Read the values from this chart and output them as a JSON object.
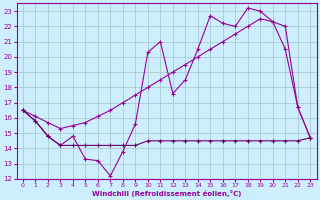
{
  "xlabel": "Windchill (Refroidissement éolien,°C)",
  "bg_color": "#cceeff",
  "grid_color": "#aacccc",
  "line_color": "#990099",
  "line_color2": "#660066",
  "xlim": [
    -0.5,
    23.5
  ],
  "ylim": [
    12,
    23.5
  ],
  "xticks": [
    0,
    1,
    2,
    3,
    4,
    5,
    6,
    7,
    8,
    9,
    10,
    11,
    12,
    13,
    14,
    15,
    16,
    17,
    18,
    19,
    20,
    21,
    22,
    23
  ],
  "yticks": [
    12,
    13,
    14,
    15,
    16,
    17,
    18,
    19,
    20,
    21,
    22,
    23
  ],
  "line1_x": [
    0,
    1,
    2,
    3,
    4,
    5,
    6,
    7,
    8,
    9,
    10,
    11,
    12,
    13,
    14,
    15,
    16,
    17,
    18,
    19,
    20,
    21,
    22,
    23
  ],
  "line1_y": [
    16.5,
    15.8,
    14.8,
    14.2,
    14.8,
    13.3,
    13.2,
    12.2,
    13.8,
    15.6,
    20.3,
    21.0,
    17.6,
    18.5,
    20.5,
    22.7,
    22.2,
    22.0,
    23.2,
    23.0,
    22.3,
    20.5,
    16.7,
    14.7
  ],
  "line2_x": [
    0,
    1,
    2,
    3,
    4,
    5,
    6,
    7,
    8,
    9,
    10,
    11,
    12,
    13,
    14,
    15,
    16,
    17,
    18,
    19,
    20,
    21,
    22,
    23
  ],
  "line2_y": [
    16.5,
    16.1,
    15.7,
    15.3,
    15.5,
    15.7,
    16.1,
    16.5,
    17.0,
    17.5,
    18.0,
    18.5,
    19.0,
    19.5,
    20.0,
    20.5,
    21.0,
    21.5,
    22.0,
    22.5,
    22.3,
    22.0,
    16.7,
    14.7
  ],
  "line3_x": [
    0,
    1,
    2,
    3,
    4,
    5,
    6,
    7,
    8,
    9,
    10,
    11,
    12,
    13,
    14,
    15,
    16,
    17,
    18,
    19,
    20,
    21,
    22,
    23
  ],
  "line3_y": [
    16.5,
    15.8,
    14.8,
    14.2,
    14.2,
    14.2,
    14.2,
    14.2,
    14.2,
    14.2,
    14.5,
    14.5,
    14.5,
    14.5,
    14.5,
    14.5,
    14.5,
    14.5,
    14.5,
    14.5,
    14.5,
    14.5,
    14.5,
    14.7
  ]
}
